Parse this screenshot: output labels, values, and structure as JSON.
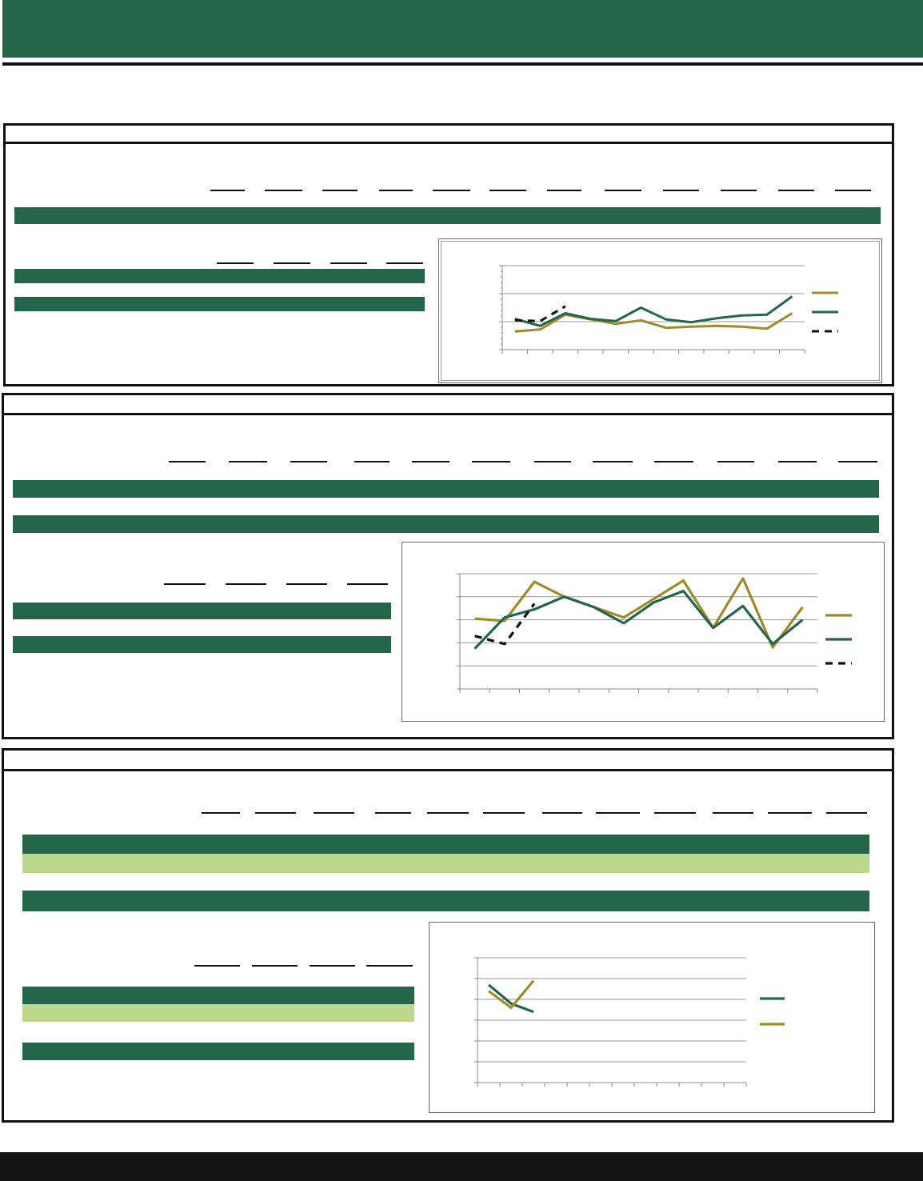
{
  "colors": {
    "brand_green": "#236649",
    "light_green": "#bcd88a",
    "gold": "#a08b2a",
    "black": "#111111",
    "footer": "#141414"
  },
  "chart_data": [
    {
      "type": "line",
      "series": [
        {
          "values": [
            6.5,
            7.2,
            12.5,
            10.8,
            9.2,
            10.5,
            7.8,
            8.2,
            8.5,
            8.2,
            7.5,
            13.0
          ]
        },
        {
          "values": [
            11.0,
            8.5,
            13.0,
            11.0,
            10.2,
            15.0,
            10.8,
            9.8,
            11.2,
            12.2,
            12.5,
            19.0
          ]
        },
        {
          "dashed": true,
          "values": [
            10.5,
            10.2,
            15.5
          ]
        }
      ],
      "ylim": [
        0,
        30
      ],
      "x_count": 12,
      "legend": "right",
      "grid": true
    },
    {
      "type": "line",
      "series": [
        {
          "values": [
            3.1,
            2.9,
            6.3,
            5.0,
            4.1,
            3.2,
            4.8,
            6.4,
            2.3,
            6.6,
            0.6,
            4.1
          ]
        },
        {
          "values": [
            0.5,
            3.2,
            3.9,
            5.0,
            4.1,
            2.7,
            4.5,
            5.5,
            2.3,
            4.2,
            0.9,
            3.0
          ]
        },
        {
          "dashed": true,
          "values": [
            1.6,
            0.9,
            4.4
          ]
        }
      ],
      "ylim": [
        -3,
        7
      ],
      "x_count": 12,
      "legend": "right",
      "grid": true
    },
    {
      "type": "line",
      "series": [
        {
          "values": [
            4.7,
            3.8,
            3.4
          ]
        },
        {
          "values": [
            4.4,
            3.6,
            4.9
          ]
        }
      ],
      "ylim": [
        0,
        6
      ],
      "x_count": 12,
      "legend": "right",
      "grid": true
    }
  ]
}
